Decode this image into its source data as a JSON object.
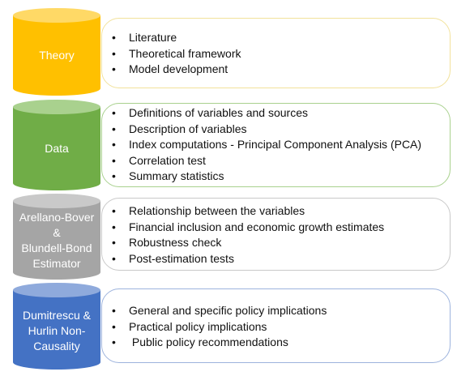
{
  "stages": [
    {
      "label": "Theory",
      "color": "#FFC000",
      "border": "#F2E29B",
      "items": [
        "Literature",
        "Theoretical framework",
        "Model development"
      ]
    },
    {
      "label": "Data",
      "color": "#70AD47",
      "border": "#A9D18E",
      "items": [
        "Definitions of variables and sources",
        "Description of variables",
        "Index computations - Principal Component Analysis (PCA)",
        "Correlation test",
        "Summary statistics"
      ]
    },
    {
      "label_lines": [
        "Arellano-Bover",
        "&",
        "Blundell-Bond",
        "Estimator"
      ],
      "color": "#A5A5A5",
      "border": "#C9C9C9",
      "items": [
        "Relationship between the variables",
        "Financial inclusion and economic growth estimates",
        "Robustness check",
        "Post-estimation tests"
      ]
    },
    {
      "label_lines": [
        "Dumitrescu &",
        "Hurlin Non-",
        "Causality"
      ],
      "color": "#4472C4",
      "border": "#9DB3DD",
      "items": [
        "General and specific policy implications",
        "Practical policy implications",
        " Public policy recommendations"
      ]
    }
  ]
}
